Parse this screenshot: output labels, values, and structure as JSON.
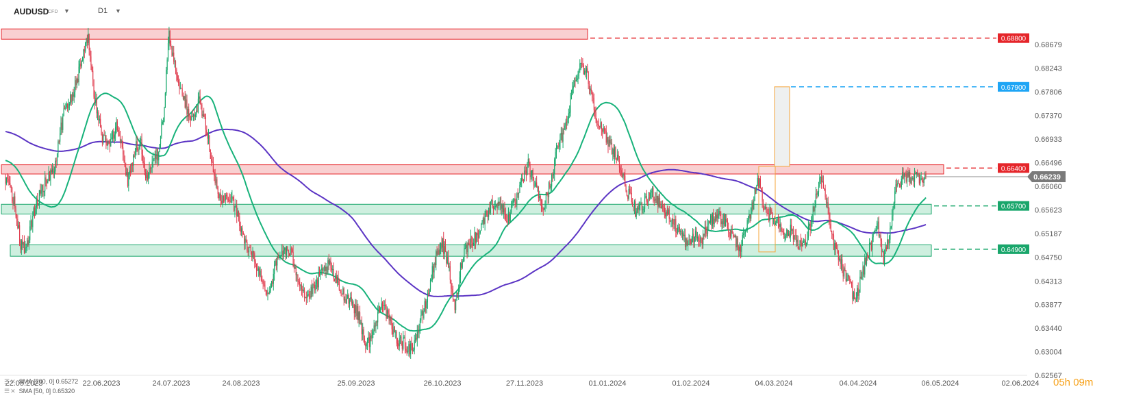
{
  "header": {
    "symbol": "AUDUSD",
    "instrument_type": "CFD",
    "timeframe": "D1"
  },
  "indicators": [
    {
      "label": "SMA [200, 0] 0.65272",
      "color": "#5b34c4"
    },
    {
      "label": "SMA [50, 0] 0.65320",
      "color": "#17b27a"
    }
  ],
  "countdown": "05h 09m",
  "colors": {
    "up": "#18a86b",
    "down": "#e03c4e",
    "resistance": "#e5252a",
    "support": "#19a66b",
    "target": "#1ea5f5",
    "current_price": "#8c8c8c"
  },
  "chart_data": {
    "type": "candlestick",
    "x_axis_labels": [
      "22.05.2023",
      "22.06.2023",
      "24.07.2023",
      "24.08.2023",
      "25.09.2023",
      "26.10.2023",
      "27.11.2023",
      "01.01.2024",
      "01.02.2024",
      "04.03.2024",
      "04.04.2024",
      "06.05.2024",
      "02.06.2024"
    ],
    "y_axis_ticks": [
      0.68679,
      0.68243,
      0.67806,
      0.6737,
      0.66933,
      0.66496,
      0.6606,
      0.65623,
      0.65187,
      0.6475,
      0.64313,
      0.63877,
      0.6344,
      0.63004,
      0.62567
    ],
    "ylim": [
      0.6257,
      0.6915
    ],
    "current_price": 0.66239,
    "price_levels": [
      {
        "label": "0.68800",
        "value": 0.688,
        "style": "resistance"
      },
      {
        "label": "0.67900",
        "value": 0.679,
        "style": "target"
      },
      {
        "label": "0.66400",
        "value": 0.664,
        "style": "resistance"
      },
      {
        "label": "0.65700",
        "value": 0.657,
        "style": "support"
      },
      {
        "label": "0.64900",
        "value": 0.649,
        "style": "support"
      }
    ],
    "current_price_label": "0.66239",
    "close_path": [
      [
        0,
        0.662
      ],
      [
        10,
        0.6575
      ],
      [
        16,
        0.6495
      ],
      [
        22,
        0.649
      ],
      [
        30,
        0.6555
      ],
      [
        38,
        0.66
      ],
      [
        52,
        0.6645
      ],
      [
        62,
        0.674
      ],
      [
        72,
        0.678
      ],
      [
        82,
        0.684
      ],
      [
        88,
        0.6885
      ],
      [
        94,
        0.678
      ],
      [
        102,
        0.67
      ],
      [
        112,
        0.6685
      ],
      [
        118,
        0.6725
      ],
      [
        124,
        0.668
      ],
      [
        130,
        0.6615
      ],
      [
        138,
        0.668
      ],
      [
        144,
        0.6685
      ],
      [
        150,
        0.662
      ],
      [
        156,
        0.665
      ],
      [
        162,
        0.6665
      ],
      [
        168,
        0.6735
      ],
      [
        174,
        0.6885
      ],
      [
        182,
        0.6815
      ],
      [
        190,
        0.6765
      ],
      [
        198,
        0.6725
      ],
      [
        206,
        0.676
      ],
      [
        214,
        0.6715
      ],
      [
        222,
        0.662
      ],
      [
        230,
        0.6575
      ],
      [
        240,
        0.659
      ],
      [
        248,
        0.6545
      ],
      [
        256,
        0.6495
      ],
      [
        264,
        0.6475
      ],
      [
        272,
        0.6435
      ],
      [
        280,
        0.641
      ],
      [
        288,
        0.6465
      ],
      [
        296,
        0.649
      ],
      [
        304,
        0.648
      ],
      [
        312,
        0.6435
      ],
      [
        320,
        0.64
      ],
      [
        328,
        0.6415
      ],
      [
        336,
        0.6445
      ],
      [
        344,
        0.646
      ],
      [
        352,
        0.643
      ],
      [
        360,
        0.6405
      ],
      [
        368,
        0.6395
      ],
      [
        376,
        0.6365
      ],
      [
        384,
        0.631
      ],
      [
        392,
        0.634
      ],
      [
        400,
        0.64
      ],
      [
        408,
        0.6355
      ],
      [
        416,
        0.6325
      ],
      [
        424,
        0.6315
      ],
      [
        432,
        0.6305
      ],
      [
        440,
        0.6345
      ],
      [
        448,
        0.6395
      ],
      [
        456,
        0.6465
      ],
      [
        464,
        0.6505
      ],
      [
        472,
        0.645
      ],
      [
        478,
        0.6375
      ],
      [
        486,
        0.648
      ],
      [
        494,
        0.6505
      ],
      [
        502,
        0.6515
      ],
      [
        510,
        0.655
      ],
      [
        518,
        0.6575
      ],
      [
        526,
        0.6575
      ],
      [
        534,
        0.6545
      ],
      [
        542,
        0.6575
      ],
      [
        550,
        0.6615
      ],
      [
        556,
        0.6645
      ],
      [
        564,
        0.6605
      ],
      [
        572,
        0.6565
      ],
      [
        580,
        0.6615
      ],
      [
        588,
        0.6685
      ],
      [
        594,
        0.6705
      ],
      [
        600,
        0.6755
      ],
      [
        606,
        0.6805
      ],
      [
        612,
        0.6835
      ],
      [
        618,
        0.6815
      ],
      [
        624,
        0.6775
      ],
      [
        630,
        0.6725
      ],
      [
        636,
        0.6705
      ],
      [
        642,
        0.6685
      ],
      [
        650,
        0.6665
      ],
      [
        656,
        0.6625
      ],
      [
        664,
        0.6585
      ],
      [
        672,
        0.6555
      ],
      [
        680,
        0.6575
      ],
      [
        688,
        0.6595
      ],
      [
        696,
        0.6575
      ],
      [
        704,
        0.6555
      ],
      [
        712,
        0.6535
      ],
      [
        720,
        0.6515
      ],
      [
        726,
        0.6495
      ],
      [
        732,
        0.6515
      ],
      [
        740,
        0.6505
      ],
      [
        748,
        0.6535
      ],
      [
        756,
        0.6555
      ],
      [
        764,
        0.6545
      ],
      [
        770,
        0.6525
      ],
      [
        776,
        0.6505
      ],
      [
        782,
        0.6495
      ],
      [
        788,
        0.6525
      ],
      [
        794,
        0.6565
      ],
      [
        800,
        0.6625
      ],
      [
        806,
        0.6575
      ],
      [
        812,
        0.6555
      ],
      [
        818,
        0.6545
      ],
      [
        824,
        0.6535
      ],
      [
        830,
        0.6515
      ],
      [
        836,
        0.6525
      ],
      [
        842,
        0.6505
      ],
      [
        850,
        0.6495
      ],
      [
        856,
        0.6535
      ],
      [
        862,
        0.6585
      ],
      [
        868,
        0.6625
      ],
      [
        874,
        0.6565
      ],
      [
        880,
        0.6505
      ],
      [
        886,
        0.6475
      ],
      [
        892,
        0.6445
      ],
      [
        898,
        0.6425
      ],
      [
        904,
        0.6395
      ],
      [
        910,
        0.6435
      ],
      [
        916,
        0.6475
      ],
      [
        922,
        0.6505
      ],
      [
        928,
        0.6535
      ],
      [
        934,
        0.6475
      ],
      [
        940,
        0.6515
      ],
      [
        946,
        0.6595
      ],
      [
        952,
        0.6615
      ],
      [
        955,
        0.6624
      ]
    ]
  }
}
